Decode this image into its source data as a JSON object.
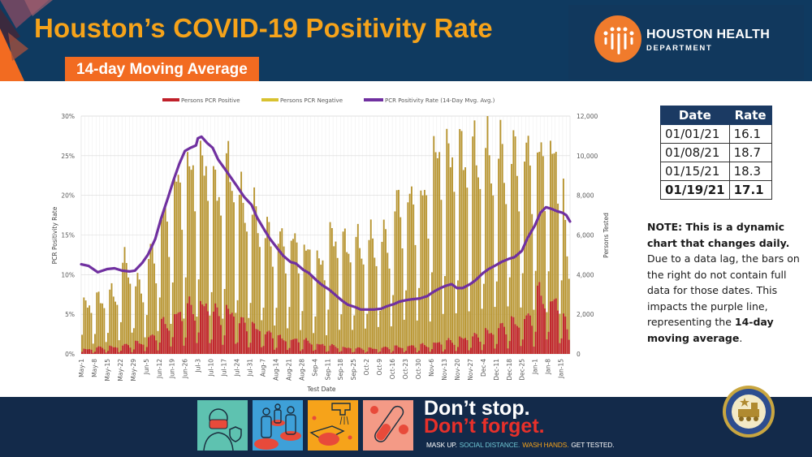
{
  "header": {
    "title": "Houston’s COVID-19 Positivity Rate",
    "subtitle": "14-day Moving Average",
    "logo_name": "HOUSTON HEALTH",
    "logo_dept": "DEPARTMENT"
  },
  "colors": {
    "header_bg": "#0f3a60",
    "title_orange": "#f6a31a",
    "subtitle_orange": "#f26b21",
    "positive_bar": "#c0202a",
    "negative_bar": "#b89530",
    "rate_line": "#7030a0",
    "table_header": "#1b3a63",
    "footer_bg": "#132a4a"
  },
  "rate_table": {
    "headers": [
      "Date",
      "Rate"
    ],
    "rows": [
      {
        "date": "01/01/21",
        "rate": "16.1"
      },
      {
        "date": "01/08/21",
        "rate": "18.7"
      },
      {
        "date": "01/15/21",
        "rate": "18.3"
      },
      {
        "date": "01/19/21",
        "rate": "17.1"
      }
    ]
  },
  "note": {
    "bold_lead": "NOTE: This is a dynamic chart that changes daily.",
    "body": " Due to a data lag, the bars on the right do not contain full data for those dates. This impacts the purple line, representing the ",
    "bold_tail": "14-day moving average",
    "end": "."
  },
  "footer": {
    "slogan_line1": "Don’t stop.",
    "slogan_line2": "Don’t forget.",
    "tagline": [
      {
        "text": "MASK UP.",
        "color": "#ffffff"
      },
      {
        "text": "SOCIAL DISTANCE.",
        "color": "#6fc7d4"
      },
      {
        "text": "WASH HANDS.",
        "color": "#f6a31a"
      },
      {
        "text": "GET TESTED.",
        "color": "#ffffff"
      }
    ],
    "icons": [
      "mask-icon",
      "social-distance-icon",
      "wash-hands-icon",
      "test-tube-icon"
    ],
    "seal_label": "City of Houston Texas seal"
  },
  "chart_data": {
    "type": "bar",
    "title": "",
    "xlabel": "Test Date",
    "ylabel": "PCR Positivity Rate",
    "y2label": "Persons Tested",
    "ylim": [
      0,
      30
    ],
    "y2lim": [
      0,
      12000
    ],
    "y_ticks": [
      "0%",
      "5%",
      "10%",
      "15%",
      "20%",
      "25%",
      "30%"
    ],
    "y2_ticks": [
      "0",
      "2,000",
      "4,000",
      "6,000",
      "8,000",
      "10,000",
      "12,000"
    ],
    "grid": true,
    "legend_position": "top",
    "legend": [
      {
        "name": "Persons PCR Positive",
        "type": "bar",
        "color": "#c0202a"
      },
      {
        "name": "Persons PCR Negative",
        "type": "bar",
        "color": "#d8c230"
      },
      {
        "name": "PCR Positivity Rate (14-Day Mvg. Avg.)",
        "type": "line",
        "color": "#7030a0"
      }
    ],
    "x_tick_labels": [
      "May-1",
      "May-8",
      "May-15",
      "May-22",
      "May-29",
      "Jun-5",
      "Jun-12",
      "Jun-19",
      "Jun-26",
      "Jul-3",
      "Jul-10",
      "Jul-17",
      "Jul-24",
      "Jul-31",
      "Aug-7",
      "Aug-14",
      "Aug-21",
      "Aug-28",
      "Sep-4",
      "Sep-11",
      "Sep-18",
      "Sep-25",
      "Oct-2",
      "Oct-9",
      "Oct-16",
      "Oct-23",
      "Oct-30",
      "Nov-6",
      "Nov-13",
      "Nov-20",
      "Nov-27",
      "Dec-4",
      "Dec-11",
      "Dec-18",
      "Dec-25",
      "Jan-1",
      "Jan-8",
      "Jan-15"
    ],
    "total_days": 264,
    "series": [
      {
        "name": "PCR Positivity Rate (14-Day Mvg. Avg.)",
        "axis": "left",
        "unit": "percent",
        "points_day_value": [
          [
            0,
            11.3
          ],
          [
            4,
            11.1
          ],
          [
            9,
            10.3
          ],
          [
            14,
            10.7
          ],
          [
            18,
            10.8
          ],
          [
            22,
            10.5
          ],
          [
            26,
            10.4
          ],
          [
            29,
            10.5
          ],
          [
            33,
            11.5
          ],
          [
            36,
            12.5
          ],
          [
            40,
            14.5
          ],
          [
            43,
            17
          ],
          [
            47,
            19.8
          ],
          [
            50,
            22
          ],
          [
            53,
            24
          ],
          [
            56,
            25.6
          ],
          [
            59,
            26
          ],
          [
            62,
            26.3
          ],
          [
            63,
            27.2
          ],
          [
            65,
            27.4
          ],
          [
            68,
            26.6
          ],
          [
            71,
            26
          ],
          [
            74,
            24.5
          ],
          [
            78,
            23.2
          ],
          [
            81,
            22.2
          ],
          [
            84,
            21.2
          ],
          [
            88,
            19.8
          ],
          [
            92,
            18.8
          ],
          [
            95,
            17.2
          ],
          [
            99,
            15.6
          ],
          [
            102,
            14.5
          ],
          [
            106,
            13.3
          ],
          [
            109,
            12.4
          ],
          [
            113,
            11.6
          ],
          [
            116,
            11.4
          ],
          [
            120,
            10.6
          ],
          [
            123,
            10.2
          ],
          [
            127,
            9.3
          ],
          [
            130,
            8.7
          ],
          [
            134,
            8.1
          ],
          [
            137,
            7.5
          ],
          [
            141,
            6.7
          ],
          [
            144,
            6.2
          ],
          [
            148,
            5.9
          ],
          [
            151,
            5.6
          ],
          [
            155,
            5.6
          ],
          [
            158,
            5.6
          ],
          [
            162,
            5.7
          ],
          [
            165,
            6
          ],
          [
            169,
            6.3
          ],
          [
            172,
            6.6
          ],
          [
            176,
            6.8
          ],
          [
            179,
            6.9
          ],
          [
            183,
            7
          ],
          [
            187,
            7.3
          ],
          [
            190,
            7.8
          ],
          [
            194,
            8.3
          ],
          [
            197,
            8.6
          ],
          [
            200,
            8.8
          ],
          [
            203,
            8.3
          ],
          [
            206,
            8.3
          ],
          [
            210,
            8.8
          ],
          [
            213,
            9.3
          ],
          [
            217,
            10.2
          ],
          [
            220,
            10.7
          ],
          [
            224,
            11.2
          ],
          [
            227,
            11.6
          ],
          [
            231,
            12
          ],
          [
            234,
            12.2
          ],
          [
            238,
            13
          ],
          [
            241,
            14.6
          ],
          [
            245,
            16.2
          ],
          [
            248,
            17.8
          ],
          [
            251,
            18.5
          ],
          [
            254,
            18.3
          ],
          [
            257,
            18
          ],
          [
            260,
            17.8
          ],
          [
            262,
            17.5
          ],
          [
            264,
            16.7
          ]
        ]
      },
      {
        "name": "Persons PCR Negative (total tested envelope)",
        "axis": "right",
        "unit": "persons",
        "weekly_peak_persons_tested": [
          3000,
          3300,
          3600,
          5400,
          4200,
          6000,
          8300,
          10300,
          11200,
          11400,
          10000,
          11000,
          9200,
          8500,
          7300,
          6900,
          6800,
          6200,
          5600,
          7000,
          6600,
          6600,
          6800,
          7000,
          9000,
          9300,
          9500,
          12000,
          12000,
          12000,
          12000,
          12000,
          12000,
          12000,
          12000,
          12000,
          12000,
          11500
        ],
        "note": "Daily bars follow a weekly cycle: weekday highs, weekend lows; values beyond 12,000 are clipped at the axis top"
      },
      {
        "name": "Persons PCR Positive",
        "axis": "right",
        "unit": "persons",
        "weekly_peak_persons_positive": [
          300,
          400,
          450,
          550,
          700,
          1100,
          1900,
          2500,
          2900,
          3100,
          2600,
          2700,
          2000,
          1700,
          1300,
          1000,
          900,
          800,
          600,
          500,
          400,
          350,
          350,
          400,
          450,
          500,
          550,
          700,
          800,
          1000,
          1100,
          1400,
          1700,
          2000,
          2300,
          3700,
          3300,
          3000
        ]
      }
    ]
  }
}
